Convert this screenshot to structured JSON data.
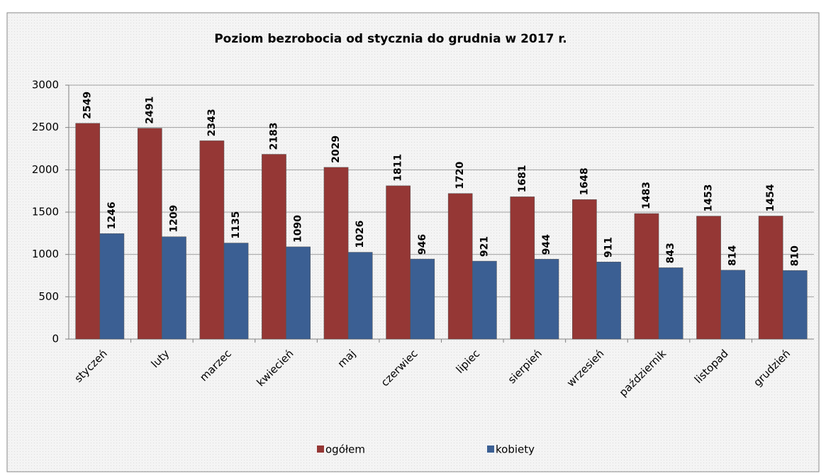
{
  "chart_data": {
    "type": "bar",
    "title": "Poziom bezrobocia od stycznia do grudnia w 2017 r.",
    "categories": [
      "styczeń",
      "luty",
      "marzec",
      "kwiecień",
      "maj",
      "czerwiec",
      "lipiec",
      "sierpień",
      "wrzesień",
      "październik",
      "listopad",
      "grudzień"
    ],
    "series": [
      {
        "name": "ogółem",
        "color": "#953735",
        "values": [
          2549,
          2491,
          2343,
          2183,
          2029,
          1811,
          1720,
          1681,
          1648,
          1483,
          1453,
          1454
        ]
      },
      {
        "name": "kobiety",
        "color": "#3b5f93",
        "values": [
          1246,
          1209,
          1135,
          1090,
          1026,
          946,
          921,
          944,
          911,
          843,
          814,
          810
        ]
      }
    ],
    "ylim": [
      0,
      3000
    ],
    "yticks": [
      0,
      500,
      1000,
      1500,
      2000,
      2500,
      3000
    ],
    "grid": true,
    "legend": "bottom"
  }
}
